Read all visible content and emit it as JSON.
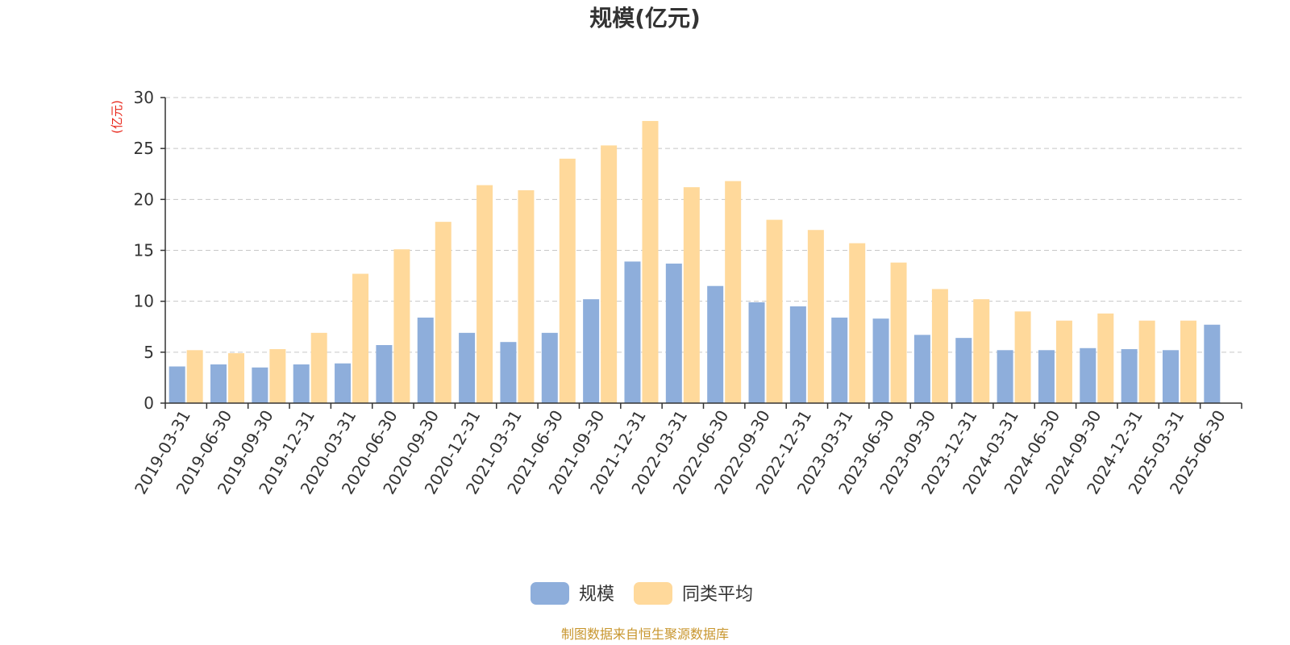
{
  "chart_data": {
    "type": "bar",
    "title": "规模(亿元)",
    "ylabel": "(亿元)",
    "xlabel": "",
    "ylim": [
      0,
      30
    ],
    "yticks": [
      0,
      5,
      10,
      15,
      20,
      25,
      30
    ],
    "grid": true,
    "legend_position": "bottom-center",
    "categories": [
      "2019-03-31",
      "2019-06-30",
      "2019-09-30",
      "2019-12-31",
      "2020-03-31",
      "2020-06-30",
      "2020-09-30",
      "2020-12-31",
      "2021-03-31",
      "2021-06-30",
      "2021-09-30",
      "2021-12-31",
      "2022-03-31",
      "2022-06-30",
      "2022-09-30",
      "2022-12-31",
      "2023-03-31",
      "2023-06-30",
      "2023-09-30",
      "2023-12-31",
      "2024-03-31",
      "2024-06-30",
      "2024-09-30",
      "2024-12-31",
      "2025-03-31",
      "2025-06-30"
    ],
    "series": [
      {
        "name": "规模",
        "color": "#8eaedb",
        "values": [
          3.6,
          3.8,
          3.5,
          3.8,
          3.9,
          5.7,
          8.4,
          6.9,
          6.0,
          6.9,
          10.2,
          13.9,
          13.7,
          11.5,
          9.9,
          9.5,
          8.4,
          8.3,
          6.7,
          6.4,
          5.2,
          5.2,
          5.4,
          5.3,
          5.2,
          7.7
        ]
      },
      {
        "name": "同类平均",
        "color": "#ffd99b",
        "values": [
          5.2,
          4.9,
          5.3,
          6.9,
          12.7,
          15.1,
          17.8,
          21.4,
          20.9,
          24.0,
          25.3,
          27.7,
          21.2,
          21.8,
          18.0,
          17.0,
          15.7,
          13.8,
          11.2,
          10.2,
          9.0,
          8.1,
          8.8,
          8.1,
          8.1,
          null
        ]
      }
    ]
  },
  "source_text": "制图数据来自恒生聚源数据库"
}
